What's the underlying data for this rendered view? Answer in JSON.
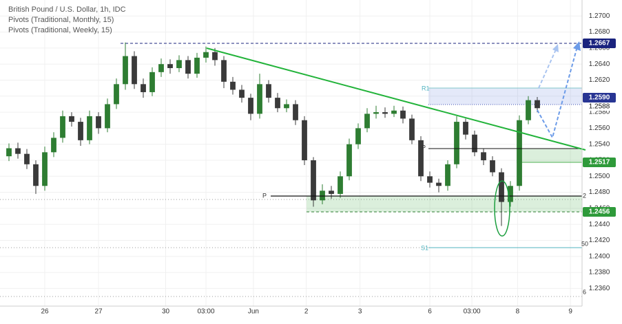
{
  "chart_data": {
    "type": "candlestick",
    "header": [
      "British Pound / U.S. Dollar, 1h, IDC",
      "Pivots (Traditional, Monthly, 15)",
      "Pivots (Traditional, Weekly, 15)"
    ],
    "up_color": "#2e7d32",
    "down_color": "#3a3a3a",
    "xlim": [
      0,
      65
    ],
    "ylim": [
      1.2338,
      1.272
    ],
    "xticks": [
      {
        "value": 5,
        "label": "26"
      },
      {
        "value": 11,
        "label": "27"
      },
      {
        "value": 18.5,
        "label": "30"
      },
      {
        "value": 23,
        "label": "03:00"
      },
      {
        "value": 28.3,
        "label": "Jun"
      },
      {
        "value": 34.2,
        "label": "2"
      },
      {
        "value": 40.2,
        "label": "3"
      },
      {
        "value": 48,
        "label": "6"
      },
      {
        "value": 52.7,
        "label": "03:00"
      },
      {
        "value": 57.8,
        "label": "8"
      },
      {
        "value": 63.7,
        "label": "9"
      }
    ],
    "yticks": [
      {
        "value": 1.236,
        "label": "1.2360"
      },
      {
        "value": 1.238,
        "label": "1.2380"
      },
      {
        "value": 1.24,
        "label": "1.2400"
      },
      {
        "value": 1.242,
        "label": "1.2420"
      },
      {
        "value": 1.244,
        "label": "1.2440"
      },
      {
        "value": 1.246,
        "label": "1.2460"
      },
      {
        "value": 1.248,
        "label": "1.2480"
      },
      {
        "value": 1.25,
        "label": "1.2500"
      },
      {
        "value": 1.252,
        "label": "1.2520"
      },
      {
        "value": 1.254,
        "label": "1.2540"
      },
      {
        "value": 1.256,
        "label": "1.2560"
      },
      {
        "value": 1.258,
        "label": "1.2580"
      },
      {
        "value": 1.26,
        "label": "1.2600"
      },
      {
        "value": 1.262,
        "label": "1.2620"
      },
      {
        "value": 1.264,
        "label": "1.2640"
      },
      {
        "value": 1.266,
        "label": "1.2660"
      },
      {
        "value": 1.268,
        "label": "1.2680"
      },
      {
        "value": 1.27,
        "label": "1.2700"
      }
    ],
    "x": [
      1,
      2,
      3,
      4,
      5,
      6,
      7,
      8,
      9,
      10,
      11,
      12,
      13,
      14,
      15,
      16,
      17,
      18,
      19,
      20,
      21,
      22,
      23,
      24,
      25,
      26,
      27,
      28,
      29,
      30,
      31,
      32,
      33,
      34,
      35,
      36,
      37,
      38,
      39,
      40,
      41,
      42,
      43,
      44,
      45,
      46,
      47,
      48,
      49,
      50,
      51,
      52,
      53,
      54,
      55,
      56,
      57,
      58,
      59,
      60
    ],
    "open": [
      1.2525,
      1.2535,
      1.2528,
      1.2515,
      1.2488,
      1.253,
      1.2548,
      1.2575,
      1.2568,
      1.2545,
      1.2575,
      1.256,
      1.259,
      1.2615,
      1.265,
      1.2615,
      1.2605,
      1.263,
      1.264,
      1.2635,
      1.2645,
      1.2628,
      1.2648,
      1.2655,
      1.2645,
      1.2618,
      1.2608,
      1.2598,
      1.2578,
      1.2615,
      1.2598,
      1.2585,
      1.259,
      1.257,
      1.252,
      1.247,
      1.2482,
      1.2478,
      1.25,
      1.254,
      1.256,
      1.2578,
      1.258,
      1.2578,
      1.2582,
      1.2572,
      1.2545,
      1.25,
      1.2492,
      1.2488,
      1.2515,
      1.2568,
      1.2552,
      1.253,
      1.252,
      1.2505,
      1.2468,
      1.2488,
      1.257,
      1.2595
    ],
    "high": [
      1.2541,
      1.2542,
      1.2534,
      1.252,
      1.2537,
      1.2555,
      1.2582,
      1.258,
      1.2573,
      1.2582,
      1.258,
      1.2597,
      1.2622,
      1.2667,
      1.2656,
      1.2622,
      1.2636,
      1.2647,
      1.2646,
      1.2651,
      1.265,
      1.2654,
      1.2662,
      1.266,
      1.265,
      1.2624,
      1.2614,
      1.2603,
      1.2628,
      1.262,
      1.2604,
      1.2596,
      1.2595,
      1.2575,
      1.2524,
      1.249,
      1.2488,
      1.2506,
      1.2547,
      1.2566,
      1.2585,
      1.2588,
      1.2586,
      1.2588,
      1.2587,
      1.2577,
      1.255,
      1.2506,
      1.2497,
      1.252,
      1.2575,
      1.2572,
      1.2557,
      1.2535,
      1.2525,
      1.251,
      1.2494,
      1.2576,
      1.26,
      1.2599
    ],
    "low": [
      1.2519,
      1.2522,
      1.2509,
      1.2478,
      1.2482,
      1.2524,
      1.2542,
      1.2562,
      1.2538,
      1.254,
      1.2553,
      1.2555,
      1.2584,
      1.2608,
      1.2609,
      1.2598,
      1.26,
      1.2624,
      1.2628,
      1.263,
      1.2622,
      1.2623,
      1.2642,
      1.2638,
      1.261,
      1.2602,
      1.2592,
      1.257,
      1.2572,
      1.2592,
      1.258,
      1.258,
      1.2564,
      1.2514,
      1.2462,
      1.2465,
      1.2472,
      1.2473,
      1.2495,
      1.2534,
      1.2555,
      1.2572,
      1.2573,
      1.2574,
      1.2566,
      1.254,
      1.2494,
      1.2486,
      1.248,
      1.2482,
      1.251,
      1.2546,
      1.2525,
      1.2514,
      1.25,
      1.2438,
      1.2462,
      1.2482,
      1.2565,
      1.258
    ],
    "close": [
      1.2535,
      1.2528,
      1.2515,
      1.2488,
      1.253,
      1.2548,
      1.2575,
      1.2568,
      1.2545,
      1.2575,
      1.256,
      1.259,
      1.2615,
      1.265,
      1.2615,
      1.2605,
      1.263,
      1.264,
      1.2635,
      1.2645,
      1.2628,
      1.2648,
      1.2655,
      1.2645,
      1.2618,
      1.2608,
      1.2598,
      1.2578,
      1.2615,
      1.2598,
      1.2585,
      1.259,
      1.257,
      1.252,
      1.247,
      1.2482,
      1.2478,
      1.25,
      1.254,
      1.256,
      1.2578,
      1.258,
      1.2578,
      1.2582,
      1.2572,
      1.2545,
      1.25,
      1.2492,
      1.2488,
      1.2515,
      1.2568,
      1.2552,
      1.253,
      1.252,
      1.2505,
      1.2468,
      1.2488,
      1.257,
      1.2595,
      1.2585
    ],
    "price_labels": [
      "1.2667",
      "1.2590",
      "1.2588",
      "1.2517",
      "1.2456"
    ],
    "pivot_labels": [
      "R1",
      "P",
      "P",
      "S1",
      "2",
      "50",
      "6"
    ]
  }
}
